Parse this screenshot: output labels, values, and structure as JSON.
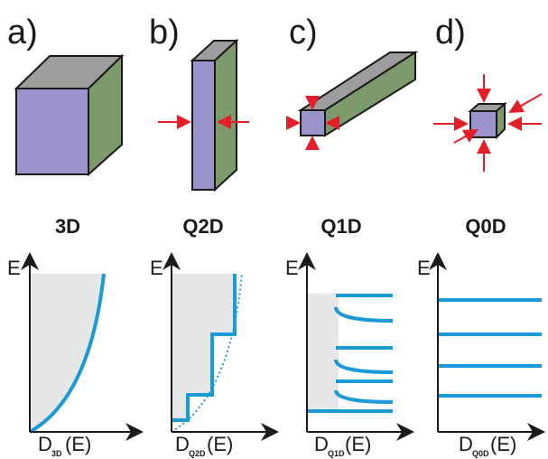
{
  "panels": [
    {
      "label": "a)",
      "title": "3D",
      "y_axis": "E",
      "x_axis": {
        "symbol": "D",
        "subscript": "3D",
        "argument": "(E)"
      }
    },
    {
      "label": "b)",
      "title": "Q2D",
      "y_axis": "E",
      "x_axis": {
        "symbol": "D",
        "subscript": "Q2D",
        "argument": "(E)"
      }
    },
    {
      "label": "c)",
      "title": "Q1D",
      "y_axis": "E",
      "x_axis": {
        "symbol": "D",
        "subscript": "Q1D",
        "argument": "(E)"
      }
    },
    {
      "label": "d)",
      "title": "Q0D",
      "y_axis": "E",
      "x_axis": {
        "symbol": "D",
        "subscript": "Q0D",
        "argument": "(E)"
      }
    }
  ]
}
